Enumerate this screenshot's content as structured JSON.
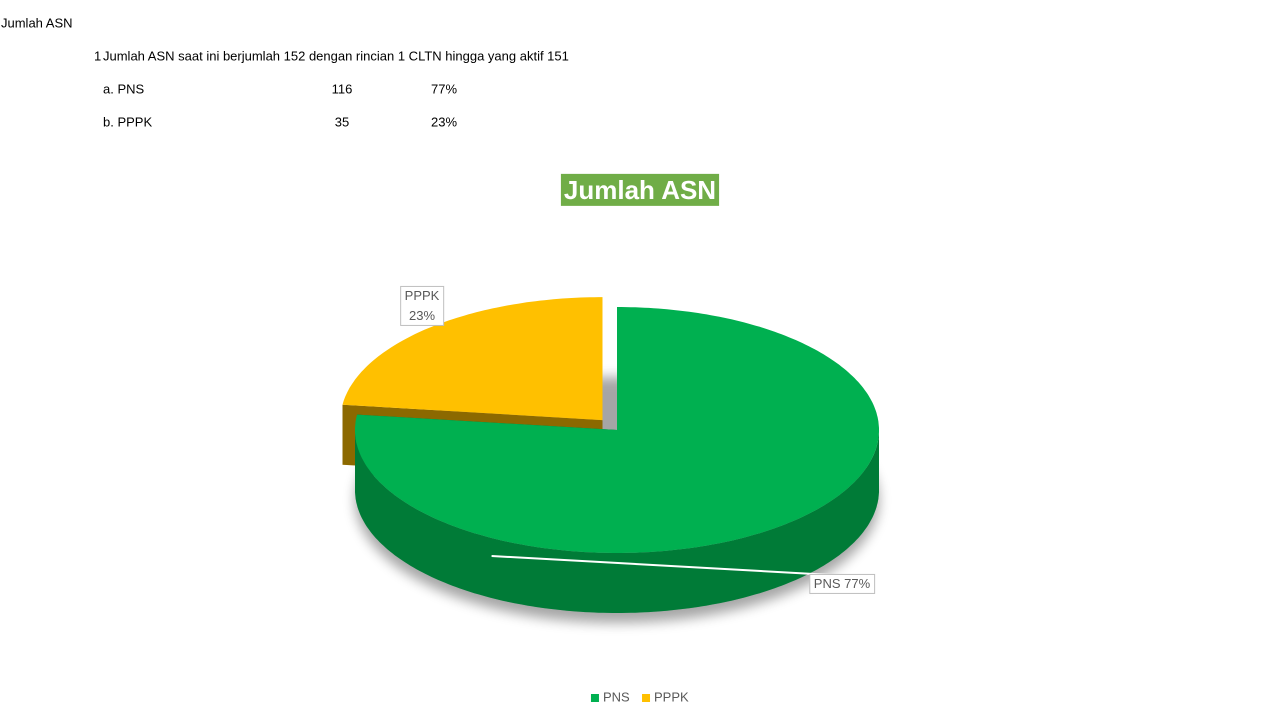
{
  "header": {
    "title": "Jumlah ASN"
  },
  "summary": {
    "number": "1",
    "text": "Jumlah ASN saat ini berjumlah 152 dengan rincian 1 CLTN hingga yang aktif 151"
  },
  "table": {
    "rows": [
      [
        "a. PNS",
        116,
        "77%"
      ],
      [
        "b. PPPK",
        35,
        "23%"
      ]
    ]
  },
  "chart_data": {
    "type": "pie",
    "title": "Jumlah ASN",
    "categories": [
      "PNS",
      "PPPK"
    ],
    "values": [
      77,
      23
    ],
    "value_labels": [
      "77%",
      "23%"
    ],
    "colors": [
      "#00b050",
      "#ffc000"
    ],
    "legend": "bottom"
  }
}
